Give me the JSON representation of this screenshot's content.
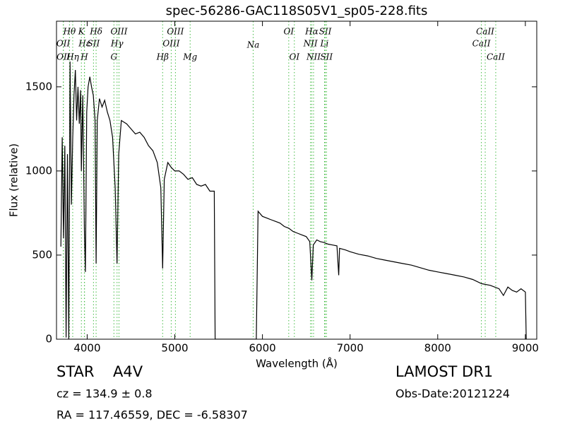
{
  "chart_data": {
    "type": "line",
    "title": "spec-56286-GAC118S05V1_sp05-228.fits",
    "x_label": "Wavelength (Å)",
    "y_label": "Flux (relative)",
    "color": "#000000",
    "xlim": [
      3650,
      9130
    ],
    "ylim": [
      0,
      1890
    ],
    "xticks": [
      4000,
      5000,
      6000,
      7000,
      8000,
      9000
    ],
    "yticks": [
      0,
      500,
      1000,
      1500
    ],
    "x": [
      3700,
      3715,
      3730,
      3745,
      3760,
      3775,
      3790,
      3805,
      3820,
      3835,
      3850,
      3865,
      3880,
      3895,
      3910,
      3925,
      3934,
      3950,
      3968,
      3980,
      3995,
      4010,
      4030,
      4050,
      4070,
      4090,
      4102,
      4115,
      4140,
      4170,
      4200,
      4230,
      4260,
      4290,
      4320,
      4341,
      4360,
      4390,
      4420,
      4450,
      4500,
      4550,
      4600,
      4650,
      4700,
      4750,
      4800,
      4840,
      4861,
      4880,
      4920,
      4960,
      5000,
      5050,
      5100,
      5150,
      5200,
      5250,
      5300,
      5350,
      5400,
      5450,
      5460,
      5930,
      5950,
      6000,
      6050,
      6100,
      6150,
      6200,
      6250,
      6300,
      6350,
      6400,
      6450,
      6500,
      6540,
      6563,
      6580,
      6620,
      6660,
      6700,
      6750,
      6800,
      6850,
      6870,
      6880,
      6950,
      7000,
      7100,
      7200,
      7300,
      7400,
      7500,
      7600,
      7700,
      7800,
      7900,
      8000,
      8100,
      8200,
      8300,
      8400,
      8500,
      8600,
      8700,
      8750,
      8800,
      8850,
      8900,
      8950,
      9000,
      9010
    ],
    "values": [
      550,
      1200,
      600,
      1150,
      10,
      1100,
      0,
      1650,
      800,
      1200,
      1450,
      1600,
      1300,
      1500,
      1280,
      1480,
      1000,
      1450,
      650,
      400,
      1350,
      1500,
      1560,
      1500,
      1450,
      1300,
      450,
      1300,
      1430,
      1380,
      1420,
      1350,
      1300,
      1200,
      900,
      450,
      1100,
      1300,
      1290,
      1280,
      1250,
      1220,
      1230,
      1200,
      1150,
      1120,
      1050,
      900,
      420,
      950,
      1050,
      1020,
      1000,
      1000,
      980,
      950,
      960,
      920,
      910,
      920,
      880,
      880,
      0,
      0,
      760,
      730,
      720,
      710,
      700,
      690,
      670,
      660,
      640,
      630,
      620,
      610,
      580,
      350,
      560,
      590,
      580,
      575,
      565,
      560,
      555,
      380,
      540,
      530,
      520,
      505,
      495,
      480,
      470,
      460,
      450,
      440,
      425,
      410,
      400,
      390,
      380,
      370,
      355,
      330,
      320,
      300,
      260,
      310,
      290,
      280,
      300,
      280,
      0
    ],
    "line_color": "#44bb44",
    "lines": [
      {
        "label": "OII",
        "wavelength": 3727
      },
      {
        "label": "OII",
        "wavelength": 3729
      },
      {
        "label": "Hθ",
        "wavelength": 3798
      },
      {
        "label": "Hη",
        "wavelength": 3835
      },
      {
        "label": "Hε",
        "wavelength": 3970
      },
      {
        "label": "K",
        "wavelength": 3934
      },
      {
        "label": "H",
        "wavelength": 3968
      },
      {
        "label": "SII",
        "wavelength": 4072
      },
      {
        "label": "Hδ",
        "wavelength": 4102
      },
      {
        "label": "G",
        "wavelength": 4305
      },
      {
        "label": "Hγ",
        "wavelength": 4341
      },
      {
        "label": "OIII",
        "wavelength": 4363
      },
      {
        "label": "Hβ",
        "wavelength": 4861
      },
      {
        "label": "OIII",
        "wavelength": 4959
      },
      {
        "label": "OIII",
        "wavelength": 5007
      },
      {
        "label": "Mg",
        "wavelength": 5175
      },
      {
        "label": "Na",
        "wavelength": 5894
      },
      {
        "label": "OI",
        "wavelength": 6300
      },
      {
        "label": "OI",
        "wavelength": 6364
      },
      {
        "label": "NII",
        "wavelength": 6548
      },
      {
        "label": "Hα",
        "wavelength": 6563
      },
      {
        "label": "NII",
        "wavelength": 6583
      },
      {
        "label": "Li",
        "wavelength": 6708
      },
      {
        "label": "SII",
        "wavelength": 6717
      },
      {
        "label": "SII",
        "wavelength": 6731
      },
      {
        "label": "CaII",
        "wavelength": 8498
      },
      {
        "label": "CaII",
        "wavelength": 8542
      },
      {
        "label": "CaII",
        "wavelength": 8662
      }
    ]
  },
  "info": {
    "class": "STAR",
    "subclass": "A4V",
    "cz": "cz = 134.9 ± 0.8",
    "coords": "RA = 117.46559, DEC = -6.58307",
    "survey": "LAMOST DR1",
    "obs_date": "Obs-Date:20121224"
  }
}
